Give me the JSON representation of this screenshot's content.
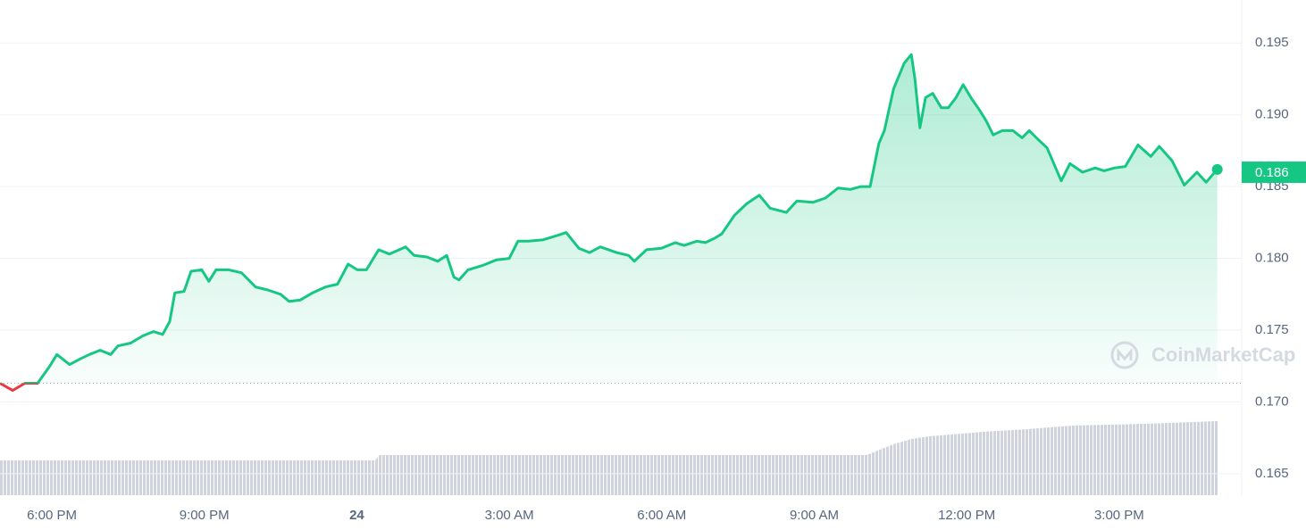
{
  "chart_data": {
    "type": "line",
    "x": [
      16.98,
      17.23,
      17.47,
      17.72,
      17.96,
      18.1,
      18.35,
      18.56,
      18.74,
      18.95,
      19.16,
      19.3,
      19.55,
      19.79,
      20.0,
      20.18,
      20.32,
      20.42,
      20.6,
      20.74,
      20.95,
      21.09,
      21.23,
      21.48,
      21.73,
      22.01,
      22.25,
      22.5,
      22.67,
      22.89,
      23.13,
      23.38,
      23.62,
      23.83,
      24.01,
      24.19,
      24.43,
      24.64,
      24.96,
      25.13,
      25.38,
      25.59,
      25.77,
      25.91,
      26.01,
      26.19,
      26.47,
      26.75,
      27.0,
      27.17,
      27.38,
      27.67,
      27.95,
      28.12,
      28.37,
      28.58,
      28.79,
      29.11,
      29.35,
      29.46,
      29.7,
      29.99,
      30.27,
      30.44,
      30.69,
      30.86,
      31.04,
      31.18,
      31.43,
      31.67,
      31.92,
      32.13,
      32.45,
      32.66,
      32.97,
      33.22,
      33.47,
      33.71,
      33.92,
      34.1,
      34.27,
      34.38,
      34.56,
      34.77,
      34.91,
      34.98,
      35.08,
      35.19,
      35.33,
      35.5,
      35.64,
      35.79,
      35.93,
      36.1,
      36.24,
      36.38,
      36.52,
      36.7,
      36.91,
      37.09,
      37.23,
      37.4,
      37.58,
      37.86,
      38.03,
      38.28,
      38.53,
      38.7,
      38.91,
      39.12,
      39.37,
      39.62,
      39.79,
      40.04,
      40.28,
      40.53,
      40.71,
      40.93
    ],
    "values": [
      0.1713,
      0.1708,
      0.1713,
      0.1713,
      0.1725,
      0.1733,
      0.1726,
      0.173,
      0.1733,
      0.1736,
      0.1733,
      0.1739,
      0.1741,
      0.1746,
      0.1749,
      0.1747,
      0.1756,
      0.1776,
      0.1777,
      0.1791,
      0.1792,
      0.1784,
      0.1792,
      0.1792,
      0.179,
      0.178,
      0.1778,
      0.1775,
      0.177,
      0.1771,
      0.1776,
      0.178,
      0.1782,
      0.1796,
      0.1792,
      0.1792,
      0.1806,
      0.1803,
      0.1808,
      0.1802,
      0.1801,
      0.1798,
      0.1802,
      0.1787,
      0.1785,
      0.1792,
      0.1795,
      0.1799,
      0.18,
      0.1812,
      0.1812,
      0.1813,
      0.1816,
      0.1818,
      0.1807,
      0.1804,
      0.1808,
      0.1804,
      0.1802,
      0.1798,
      0.1806,
      0.1807,
      0.1811,
      0.1809,
      0.1812,
      0.1811,
      0.1814,
      0.1817,
      0.183,
      0.1838,
      0.1844,
      0.1835,
      0.1832,
      0.184,
      0.1839,
      0.1842,
      0.1849,
      0.1848,
      0.185,
      0.185,
      0.188,
      0.1889,
      0.1918,
      0.1936,
      0.1942,
      0.1925,
      0.1891,
      0.1912,
      0.1915,
      0.1905,
      0.1905,
      0.1912,
      0.1921,
      0.1911,
      0.1904,
      0.1896,
      0.1886,
      0.1889,
      0.1889,
      0.1884,
      0.1889,
      0.1883,
      0.1877,
      0.1854,
      0.1866,
      0.186,
      0.1863,
      0.1861,
      0.1863,
      0.1864,
      0.1879,
      0.1871,
      0.1878,
      0.1868,
      0.1851,
      0.186,
      0.1853,
      0.1862
    ],
    "baseline": 0.1713,
    "current": 0.186,
    "up_color": "#16c784",
    "down_color": "#ea3943",
    "xlim": [
      16.98,
      41.41
    ],
    "xticks": [
      {
        "value": 18,
        "label": "6:00 PM"
      },
      {
        "value": 21,
        "label": "9:00 PM"
      },
      24,
      {
        "value": 27,
        "label": "3:00 AM"
      },
      {
        "value": 30,
        "label": "6:00 AM"
      },
      {
        "value": 33,
        "label": "9:00 AM"
      },
      {
        "value": 36,
        "label": "12:00 PM"
      },
      {
        "value": 39,
        "label": "3:00 PM"
      }
    ],
    "ylim": [
      0.1635,
      0.198
    ],
    "yticks": [
      0.165,
      {
        "value": 0.17,
        "label": "0.170"
      },
      0.175,
      {
        "value": 0.18,
        "label": "0.180"
      },
      0.185,
      {
        "value": 0.19,
        "label": "0.190"
      },
      0.195
    ],
    "grid": true,
    "watermark": "CoinMarketCap"
  }
}
